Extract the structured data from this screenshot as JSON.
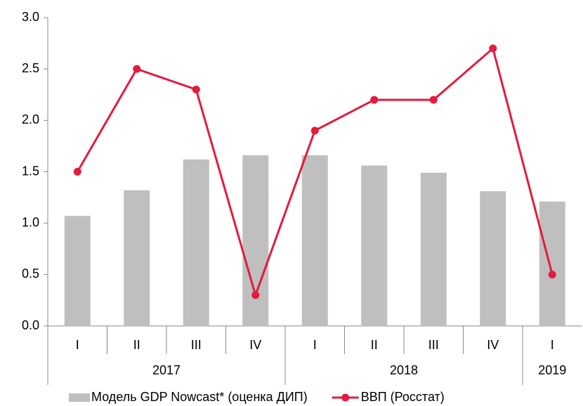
{
  "chart_data": {
    "type": "bar_line",
    "groups": [
      {
        "label": "2017",
        "categories": [
          "I",
          "II",
          "III",
          "IV"
        ]
      },
      {
        "label": "2018",
        "categories": [
          "I",
          "II",
          "III",
          "IV"
        ]
      },
      {
        "label": "2019",
        "categories": [
          "I"
        ]
      }
    ],
    "series": [
      {
        "name": "Модель GDP Nowcast* (оценка ДИП)",
        "type": "bar",
        "color": "#bfbfbf",
        "values": [
          1.07,
          1.32,
          1.62,
          1.66,
          1.66,
          1.56,
          1.49,
          1.31,
          1.21
        ]
      },
      {
        "name": "ВВП (Росстат)",
        "type": "line",
        "color": "#e31b3c",
        "values": [
          1.5,
          2.5,
          2.3,
          0.3,
          1.9,
          2.2,
          2.2,
          2.7,
          0.5
        ]
      }
    ],
    "ylim": [
      0,
      3
    ],
    "yticks": [
      {
        "value": 0,
        "label": "0.0"
      },
      {
        "value": 0.5,
        "label": "0.5"
      },
      {
        "value": 1,
        "label": "1.0"
      },
      {
        "value": 1.5,
        "label": "1.5"
      },
      {
        "value": 2,
        "label": "2.0"
      },
      {
        "value": 2.5,
        "label": "2.5"
      },
      {
        "value": 3,
        "label": "3.0"
      }
    ],
    "legend": "bottom"
  }
}
